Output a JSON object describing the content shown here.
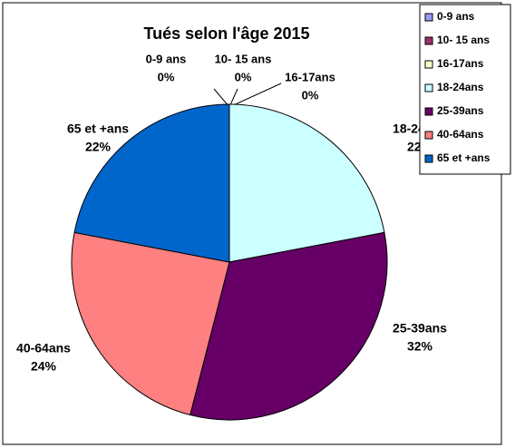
{
  "chart_data": {
    "type": "pie",
    "title": "Tués selon l'âge 2015",
    "categories": [
      "0-9 ans",
      "10- 15 ans",
      "16-17ans",
      "18-24ans",
      "25-39ans",
      "40-64ans",
      "65 et +ans"
    ],
    "values": [
      0,
      0,
      0,
      22,
      32,
      24,
      22
    ],
    "value_labels": [
      "0%",
      "0%",
      "0%",
      "22%",
      "32%",
      "24%",
      "22%"
    ],
    "colors": [
      "#9999ff",
      "#993366",
      "#ffffcc",
      "#ccffff",
      "#660066",
      "#ff8080",
      "#0066cc"
    ],
    "legend": "top-right"
  }
}
